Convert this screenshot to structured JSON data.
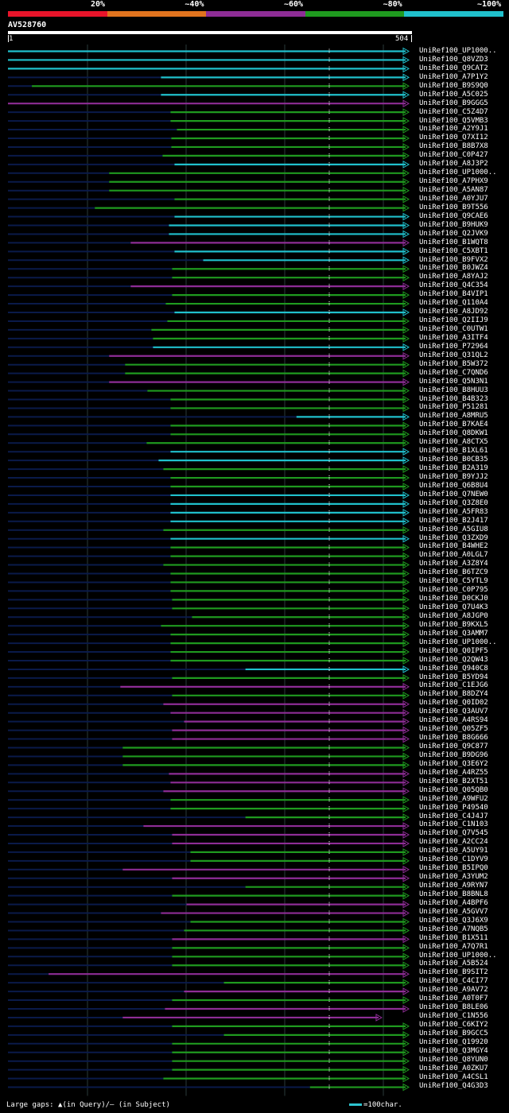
{
  "query": {
    "name": "AV528760",
    "start": "1",
    "end": "504",
    "length": 504
  },
  "identity_legend": [
    {
      "label": "20%",
      "color": "#e8142a"
    },
    {
      "label": "~40%",
      "color": "#e0731e"
    },
    {
      "label": "~60%",
      "color": "#8e2d96"
    },
    {
      "label": "~80%",
      "color": "#1f9a1f"
    },
    {
      "label": "~100%",
      "color": "#20c0cc"
    }
  ],
  "colors": {
    "track": "#0a1a4a",
    "gridline": "#2a3a3a",
    "marker": "#ffffff"
  },
  "footer": {
    "gaps_text": "Large gaps: ▲(in Query)/– (in Subject)",
    "scale_text": "=100char."
  },
  "hits": [
    {
      "id": "UniRef100_UP1000..",
      "start": 1,
      "end": 504,
      "color": "c"
    },
    {
      "id": "UniRef100_Q8VZD3",
      "start": 1,
      "end": 504,
      "color": "c"
    },
    {
      "id": "UniRef100_Q9CAT2",
      "start": 1,
      "end": 504,
      "color": "c"
    },
    {
      "id": "UniRef100_A7P1Y2",
      "start": 193,
      "end": 504,
      "color": "c"
    },
    {
      "id": "UniRef100_B9S9Q0",
      "start": 31,
      "end": 504,
      "color": "g"
    },
    {
      "id": "UniRef100_A5C025",
      "start": 193,
      "end": 504,
      "color": "c"
    },
    {
      "id": "UniRef100_B9GGG5",
      "start": 1,
      "end": 504,
      "color": "p"
    },
    {
      "id": "UniRef100_C5Z4D7",
      "start": 205,
      "end": 504,
      "color": "g"
    },
    {
      "id": "UniRef100_Q5VMB3",
      "start": 205,
      "end": 504,
      "color": "g"
    },
    {
      "id": "UniRef100_A2Y9J1",
      "start": 213,
      "end": 504,
      "color": "g"
    },
    {
      "id": "UniRef100_Q7XI12",
      "start": 206,
      "end": 504,
      "color": "g"
    },
    {
      "id": "UniRef100_B8B7X8",
      "start": 206,
      "end": 504,
      "color": "g"
    },
    {
      "id": "UniRef100_C0P427",
      "start": 195,
      "end": 504,
      "color": "g"
    },
    {
      "id": "UniRef100_A8J3P2",
      "start": 210,
      "end": 504,
      "color": "c"
    },
    {
      "id": "UniRef100_UP1000..",
      "start": 128,
      "end": 504,
      "color": "g"
    },
    {
      "id": "UniRef100_A7PHX9",
      "start": 128,
      "end": 504,
      "color": "g"
    },
    {
      "id": "UniRef100_A5AN87",
      "start": 128,
      "end": 504,
      "color": "g"
    },
    {
      "id": "UniRef100_A0YJU7",
      "start": 210,
      "end": 504,
      "color": "g"
    },
    {
      "id": "UniRef100_B9T556",
      "start": 110,
      "end": 504,
      "color": "g"
    },
    {
      "id": "UniRef100_Q9CAE6",
      "start": 210,
      "end": 504,
      "color": "c"
    },
    {
      "id": "UniRef100_B9HUK9",
      "start": 203,
      "end": 504,
      "color": "c"
    },
    {
      "id": "UniRef100_Q2JVK9",
      "start": 203,
      "end": 504,
      "color": "c"
    },
    {
      "id": "UniRef100_B1WQT8",
      "start": 155,
      "end": 504,
      "color": "p"
    },
    {
      "id": "UniRef100_C5XBT1",
      "start": 210,
      "end": 504,
      "color": "c"
    },
    {
      "id": "UniRef100_B9FVX2",
      "start": 246,
      "end": 504,
      "color": "c"
    },
    {
      "id": "UniRef100_B0JWZ4",
      "start": 207,
      "end": 504,
      "color": "g"
    },
    {
      "id": "UniRef100_A8YAJ2",
      "start": 207,
      "end": 504,
      "color": "g"
    },
    {
      "id": "UniRef100_Q4C354",
      "start": 155,
      "end": 504,
      "color": "p"
    },
    {
      "id": "UniRef100_B4VIP1",
      "start": 207,
      "end": 504,
      "color": "g"
    },
    {
      "id": "UniRef100_Q110A4",
      "start": 199,
      "end": 504,
      "color": "g"
    },
    {
      "id": "UniRef100_A8JD92",
      "start": 210,
      "end": 504,
      "color": "c"
    },
    {
      "id": "UniRef100_Q2IIJ9",
      "start": 201,
      "end": 504,
      "color": "g"
    },
    {
      "id": "UniRef100_C0UTW1",
      "start": 181,
      "end": 504,
      "color": "g"
    },
    {
      "id": "UniRef100_A3ITF4",
      "start": 183,
      "end": 504,
      "color": "g"
    },
    {
      "id": "UniRef100_P72964",
      "start": 183,
      "end": 504,
      "color": "c"
    },
    {
      "id": "UniRef100_Q31QL2",
      "start": 128,
      "end": 504,
      "color": "p"
    },
    {
      "id": "UniRef100_B5W372",
      "start": 148,
      "end": 504,
      "color": "g"
    },
    {
      "id": "UniRef100_C7QND6",
      "start": 148,
      "end": 504,
      "color": "g"
    },
    {
      "id": "UniRef100_Q5N3N1",
      "start": 128,
      "end": 504,
      "color": "p"
    },
    {
      "id": "UniRef100_B8HUU3",
      "start": 176,
      "end": 504,
      "color": "g"
    },
    {
      "id": "UniRef100_B4B323",
      "start": 205,
      "end": 504,
      "color": "g"
    },
    {
      "id": "UniRef100_P51281",
      "start": 205,
      "end": 504,
      "color": "g"
    },
    {
      "id": "UniRef100_A8MRU5",
      "start": 363,
      "end": 504,
      "color": "c"
    },
    {
      "id": "UniRef100_B7KAE4",
      "start": 205,
      "end": 504,
      "color": "g"
    },
    {
      "id": "UniRef100_Q8DKW1",
      "start": 205,
      "end": 504,
      "color": "g"
    },
    {
      "id": "UniRef100_A8CTX5",
      "start": 175,
      "end": 504,
      "color": "g"
    },
    {
      "id": "UniRef100_B1XL61",
      "start": 205,
      "end": 504,
      "color": "c"
    },
    {
      "id": "UniRef100_B0CB35",
      "start": 190,
      "end": 504,
      "color": "c"
    },
    {
      "id": "UniRef100_B2A319",
      "start": 196,
      "end": 504,
      "color": "g"
    },
    {
      "id": "UniRef100_B9YJJ2",
      "start": 205,
      "end": 504,
      "color": "g"
    },
    {
      "id": "UniRef100_Q6B8U4",
      "start": 205,
      "end": 504,
      "color": "g"
    },
    {
      "id": "UniRef100_Q7NEW0",
      "start": 205,
      "end": 504,
      "color": "c"
    },
    {
      "id": "UniRef100_Q3Z8E0",
      "start": 205,
      "end": 504,
      "color": "c"
    },
    {
      "id": "UniRef100_A5FR83",
      "start": 205,
      "end": 504,
      "color": "c"
    },
    {
      "id": "UniRef100_B2J417",
      "start": 205,
      "end": 504,
      "color": "c"
    },
    {
      "id": "UniRef100_A5GIU8",
      "start": 196,
      "end": 504,
      "color": "g"
    },
    {
      "id": "UniRef100_Q3ZXD9",
      "start": 205,
      "end": 504,
      "color": "c"
    },
    {
      "id": "UniRef100_B4WHE2",
      "start": 205,
      "end": 504,
      "color": "g"
    },
    {
      "id": "UniRef100_A0LGL7",
      "start": 205,
      "end": 504,
      "color": "g"
    },
    {
      "id": "UniRef100_A3Z8Y4",
      "start": 196,
      "end": 504,
      "color": "g"
    },
    {
      "id": "UniRef100_B6TZC9",
      "start": 205,
      "end": 504,
      "color": "g"
    },
    {
      "id": "UniRef100_C5YTL9",
      "start": 205,
      "end": 504,
      "color": "g"
    },
    {
      "id": "UniRef100_C0P795",
      "start": 205,
      "end": 504,
      "color": "g"
    },
    {
      "id": "UniRef100_D0CKJ0",
      "start": 207,
      "end": 504,
      "color": "g"
    },
    {
      "id": "UniRef100_Q7U4K3",
      "start": 207,
      "end": 504,
      "color": "g"
    },
    {
      "id": "UniRef100_A8JGP0",
      "start": 232,
      "end": 504,
      "color": "g"
    },
    {
      "id": "UniRef100_B9KXL5",
      "start": 193,
      "end": 504,
      "color": "g"
    },
    {
      "id": "UniRef100_Q3AMM7",
      "start": 205,
      "end": 504,
      "color": "g"
    },
    {
      "id": "UniRef100_UP1000..",
      "start": 205,
      "end": 504,
      "color": "g"
    },
    {
      "id": "UniRef100_Q0IPF5",
      "start": 205,
      "end": 504,
      "color": "g"
    },
    {
      "id": "UniRef100_Q2QW43",
      "start": 205,
      "end": 504,
      "color": "g"
    },
    {
      "id": "UniRef100_Q940C8",
      "start": 299,
      "end": 504,
      "color": "c"
    },
    {
      "id": "UniRef100_B5YD94",
      "start": 207,
      "end": 504,
      "color": "g"
    },
    {
      "id": "UniRef100_C1EJG6",
      "start": 142,
      "end": 504,
      "color": "p"
    },
    {
      "id": "UniRef100_B8DZY4",
      "start": 207,
      "end": 504,
      "color": "g"
    },
    {
      "id": "UniRef100_Q0ID02",
      "start": 196,
      "end": 504,
      "color": "p"
    },
    {
      "id": "UniRef100_Q3AUV7",
      "start": 205,
      "end": 504,
      "color": "p"
    },
    {
      "id": "UniRef100_A4RS94",
      "start": 222,
      "end": 504,
      "color": "p"
    },
    {
      "id": "UniRef100_Q05ZF5",
      "start": 207,
      "end": 504,
      "color": "p"
    },
    {
      "id": "UniRef100_B8G666",
      "start": 207,
      "end": 504,
      "color": "p"
    },
    {
      "id": "UniRef100_Q9C877",
      "start": 145,
      "end": 504,
      "color": "g"
    },
    {
      "id": "UniRef100_B9DG96",
      "start": 145,
      "end": 504,
      "color": "g"
    },
    {
      "id": "UniRef100_Q3E6Y2",
      "start": 145,
      "end": 504,
      "color": "g"
    },
    {
      "id": "UniRef100_A4RZ55",
      "start": 203,
      "end": 504,
      "color": "p"
    },
    {
      "id": "UniRef100_B2XT51",
      "start": 205,
      "end": 504,
      "color": "p"
    },
    {
      "id": "UniRef100_Q05QB0",
      "start": 196,
      "end": 504,
      "color": "p"
    },
    {
      "id": "UniRef100_A9WFU2",
      "start": 205,
      "end": 504,
      "color": "g"
    },
    {
      "id": "UniRef100_P49540",
      "start": 205,
      "end": 504,
      "color": "g"
    },
    {
      "id": "UniRef100_C4J4J7",
      "start": 299,
      "end": 504,
      "color": "g"
    },
    {
      "id": "UniRef100_C1N103",
      "start": 171,
      "end": 504,
      "color": "p"
    },
    {
      "id": "UniRef100_Q7V545",
      "start": 207,
      "end": 504,
      "color": "p"
    },
    {
      "id": "UniRef100_A2CC24",
      "start": 207,
      "end": 504,
      "color": "p"
    },
    {
      "id": "UniRef100_A5UY91",
      "start": 230,
      "end": 504,
      "color": "g"
    },
    {
      "id": "UniRef100_C1DYV9",
      "start": 230,
      "end": 504,
      "color": "g"
    },
    {
      "id": "UniRef100_B5IPQ0",
      "start": 145,
      "end": 504,
      "color": "p"
    },
    {
      "id": "UniRef100_A3YUM2",
      "start": 207,
      "end": 504,
      "color": "p"
    },
    {
      "id": "UniRef100_A9RYN7",
      "start": 299,
      "end": 504,
      "color": "g"
    },
    {
      "id": "UniRef100_B8BNL8",
      "start": 207,
      "end": 504,
      "color": "g"
    },
    {
      "id": "UniRef100_A4BPF6",
      "start": 225,
      "end": 504,
      "color": "p"
    },
    {
      "id": "UniRef100_A5GVV7",
      "start": 193,
      "end": 504,
      "color": "p"
    },
    {
      "id": "UniRef100_Q3J6X9",
      "start": 230,
      "end": 504,
      "color": "g"
    },
    {
      "id": "UniRef100_A7NQB5",
      "start": 222,
      "end": 504,
      "color": "g"
    },
    {
      "id": "UniRef100_B1X511",
      "start": 207,
      "end": 504,
      "color": "p"
    },
    {
      "id": "UniRef100_A7Q7R1",
      "start": 207,
      "end": 504,
      "color": "g"
    },
    {
      "id": "UniRef100_UP1000..",
      "start": 207,
      "end": 504,
      "color": "g"
    },
    {
      "id": "UniRef100_A5B524",
      "start": 207,
      "end": 504,
      "color": "g"
    },
    {
      "id": "UniRef100_B9SIT2",
      "start": 52,
      "end": 504,
      "color": "p"
    },
    {
      "id": "UniRef100_C4CI77",
      "start": 272,
      "end": 504,
      "color": "g"
    },
    {
      "id": "UniRef100_A9AV72",
      "start": 222,
      "end": 504,
      "color": "p"
    },
    {
      "id": "UniRef100_A0T0F7",
      "start": 207,
      "end": 504,
      "color": "g"
    },
    {
      "id": "UniRef100_B8LE06",
      "start": 198,
      "end": 504,
      "color": "p"
    },
    {
      "id": "UniRef100_C1N556",
      "start": 145,
      "end": 470,
      "color": "p"
    },
    {
      "id": "UniRef100_C6KIY2",
      "start": 207,
      "end": 504,
      "color": "g"
    },
    {
      "id": "UniRef100_B9GCC5",
      "start": 272,
      "end": 504,
      "color": "g"
    },
    {
      "id": "UniRef100_Q19920",
      "start": 207,
      "end": 504,
      "color": "g"
    },
    {
      "id": "UniRef100_Q3MGY4",
      "start": 207,
      "end": 504,
      "color": "g"
    },
    {
      "id": "UniRef100_Q8YUN0",
      "start": 207,
      "end": 504,
      "color": "g"
    },
    {
      "id": "UniRef100_A0ZKU7",
      "start": 207,
      "end": 504,
      "color": "g"
    },
    {
      "id": "UniRef100_A4CSL1",
      "start": 196,
      "end": 504,
      "color": "g"
    },
    {
      "id": "UniRef100_Q4G3D3",
      "start": 380,
      "end": 504,
      "color": "g"
    }
  ]
}
